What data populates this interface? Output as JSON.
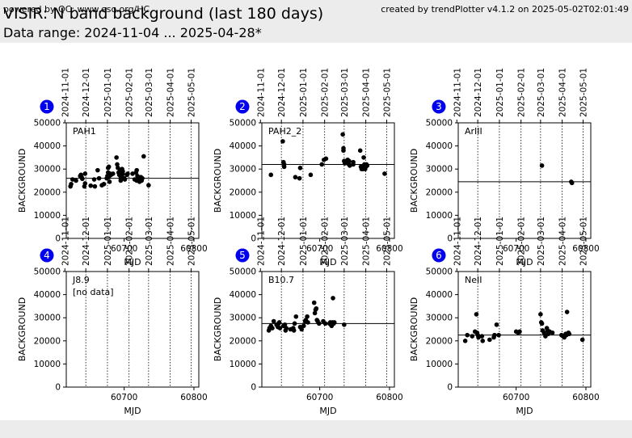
{
  "header": {
    "title": "VISIR: N band background (last 180 days)",
    "subtitle": "Data range: 2024-11-04 ... 2025-04-28*"
  },
  "footer": {
    "left": "powered by QC: www.eso.org/HC",
    "right": "created by trendPlotter v4.1.2 on 2025-05-02T02:01:49"
  },
  "colors": {
    "header_bg": "#ececec",
    "badge": "#0000ee",
    "points": "#000000",
    "mean_line": "#000000"
  },
  "chart_data": [
    {
      "type": "scatter",
      "panel": "1",
      "label": "PAH1",
      "xlabel": "MJD",
      "ylabel": "BACKGROUND",
      "xlim": [
        60617,
        60807
      ],
      "ylim": [
        0,
        50000
      ],
      "xticks": [
        60700,
        60800
      ],
      "yticks": [
        0,
        10000,
        20000,
        30000,
        40000,
        50000
      ],
      "date_ticks": [
        {
          "label": "2024-11-01",
          "mjd": 60615
        },
        {
          "label": "2024-12-01",
          "mjd": 60645
        },
        {
          "label": "2025-01-01",
          "mjd": 60676
        },
        {
          "label": "2025-02-01",
          "mjd": 60707
        },
        {
          "label": "2025-03-01",
          "mjd": 60735
        },
        {
          "label": "2025-04-01",
          "mjd": 60766
        },
        {
          "label": "2025-05-01",
          "mjd": 60796
        }
      ],
      "mean": 26000,
      "no_data": "",
      "points": [
        [
          60623,
          22500
        ],
        [
          60624,
          23500
        ],
        [
          60626,
          25500
        ],
        [
          60631,
          25000
        ],
        [
          60637,
          27000
        ],
        [
          60638,
          27500
        ],
        [
          60639,
          26500
        ],
        [
          60640,
          25800
        ],
        [
          60643,
          22500
        ],
        [
          60644,
          23800
        ],
        [
          60644,
          28000
        ],
        [
          60652,
          22800
        ],
        [
          60657,
          25500
        ],
        [
          60658,
          22500
        ],
        [
          60662,
          29500
        ],
        [
          60664,
          26000
        ],
        [
          60668,
          23000
        ],
        [
          60671,
          23500
        ],
        [
          60675,
          26000
        ],
        [
          60676,
          27000
        ],
        [
          60677,
          28500
        ],
        [
          60677,
          30500
        ],
        [
          60678,
          31000
        ],
        [
          60678,
          26500
        ],
        [
          60679,
          24500
        ],
        [
          60680,
          28000
        ],
        [
          60681,
          27500
        ],
        [
          60684,
          28000
        ],
        [
          60689,
          35000
        ],
        [
          60690,
          32000
        ],
        [
          60691,
          30500
        ],
        [
          60692,
          28500
        ],
        [
          60693,
          27500
        ],
        [
          60694,
          29000
        ],
        [
          60695,
          26000
        ],
        [
          60695,
          25000
        ],
        [
          60697,
          30000
        ],
        [
          60697,
          27500
        ],
        [
          60698,
          29000
        ],
        [
          60698,
          28000
        ],
        [
          60700,
          26000
        ],
        [
          60701,
          25500
        ],
        [
          60704,
          27500
        ],
        [
          60705,
          28000
        ],
        [
          60712,
          28000
        ],
        [
          60715,
          25500
        ],
        [
          60717,
          28500
        ],
        [
          60718,
          29500
        ],
        [
          60718,
          25000
        ],
        [
          60719,
          27000
        ],
        [
          60720,
          26000
        ],
        [
          60722,
          24500
        ],
        [
          60723,
          25500
        ],
        [
          60724,
          26500
        ],
        [
          60725,
          25000
        ],
        [
          60726,
          26000
        ],
        [
          60728,
          35500
        ],
        [
          60735,
          23000
        ]
      ]
    },
    {
      "type": "scatter",
      "panel": "2",
      "label": "PAH2_2",
      "xlabel": "MJD",
      "ylabel": "BACKGROUND",
      "xlim": [
        60617,
        60807
      ],
      "ylim": [
        0,
        50000
      ],
      "xticks": [
        60700,
        60800
      ],
      "yticks": [
        0,
        10000,
        20000,
        30000,
        40000,
        50000
      ],
      "date_ticks": [
        {
          "label": "2024-11-01",
          "mjd": 60615
        },
        {
          "label": "2024-12-01",
          "mjd": 60645
        },
        {
          "label": "2025-01-01",
          "mjd": 60676
        },
        {
          "label": "2025-02-01",
          "mjd": 60707
        },
        {
          "label": "2025-03-01",
          "mjd": 60735
        },
        {
          "label": "2025-04-01",
          "mjd": 60766
        },
        {
          "label": "2025-05-01",
          "mjd": 60796
        }
      ],
      "mean": 32000,
      "no_data": "",
      "points": [
        [
          60630,
          27500
        ],
        [
          60647,
          42000
        ],
        [
          60648,
          33000
        ],
        [
          60649,
          32000
        ],
        [
          60649,
          31000
        ],
        [
          60665,
          26500
        ],
        [
          60671,
          26000
        ],
        [
          60672,
          30500
        ],
        [
          60687,
          27500
        ],
        [
          60703,
          32000
        ],
        [
          60706,
          34000
        ],
        [
          60709,
          34500
        ],
        [
          60733,
          45000
        ],
        [
          60734,
          39000
        ],
        [
          60734,
          38000
        ],
        [
          60735,
          33500
        ],
        [
          60736,
          32500
        ],
        [
          60737,
          33000
        ],
        [
          60740,
          32500
        ],
        [
          60740,
          34000
        ],
        [
          60742,
          33500
        ],
        [
          60742,
          32000
        ],
        [
          60743,
          31500
        ],
        [
          60748,
          32000
        ],
        [
          60748,
          33000
        ],
        [
          60758,
          38000
        ],
        [
          60759,
          31000
        ],
        [
          60760,
          30000
        ],
        [
          60761,
          30500
        ],
        [
          60762,
          30000
        ],
        [
          60763,
          35000
        ],
        [
          60764,
          32000
        ],
        [
          60765,
          30000
        ],
        [
          60766,
          31000
        ],
        [
          60767,
          32000
        ],
        [
          60768,
          31500
        ],
        [
          60793,
          28000
        ]
      ]
    },
    {
      "type": "scatter",
      "panel": "3",
      "label": "ArIII",
      "xlabel": "MJD",
      "ylabel": "BACKGROUND",
      "xlim": [
        60617,
        60807
      ],
      "ylim": [
        0,
        50000
      ],
      "xticks": [
        60700,
        60800
      ],
      "yticks": [
        0,
        10000,
        20000,
        30000,
        40000,
        50000
      ],
      "date_ticks": [
        {
          "label": "2024-11-01",
          "mjd": 60615
        },
        {
          "label": "2024-12-01",
          "mjd": 60645
        },
        {
          "label": "2025-01-01",
          "mjd": 60676
        },
        {
          "label": "2025-02-01",
          "mjd": 60707
        },
        {
          "label": "2025-03-01",
          "mjd": 60735
        },
        {
          "label": "2025-04-01",
          "mjd": 60766
        },
        {
          "label": "2025-05-01",
          "mjd": 60796
        }
      ],
      "mean": 24500,
      "no_data": "",
      "points": [
        [
          60737,
          31500
        ],
        [
          60779,
          24500
        ],
        [
          60780,
          24000
        ]
      ]
    },
    {
      "type": "scatter",
      "panel": "4",
      "label": "J8.9",
      "xlabel": "MJD",
      "ylabel": "BACKGROUND",
      "xlim": [
        60617,
        60807
      ],
      "ylim": [
        0,
        50000
      ],
      "xticks": [
        60700,
        60800
      ],
      "yticks": [
        0,
        10000,
        20000,
        30000,
        40000,
        50000
      ],
      "date_ticks": [
        {
          "label": "2024-11-01",
          "mjd": 60615
        },
        {
          "label": "2024-12-01",
          "mjd": 60645
        },
        {
          "label": "2025-01-01",
          "mjd": 60676
        },
        {
          "label": "2025-02-01",
          "mjd": 60707
        },
        {
          "label": "2025-03-01",
          "mjd": 60735
        },
        {
          "label": "2025-04-01",
          "mjd": 60766
        },
        {
          "label": "2025-05-01",
          "mjd": 60796
        }
      ],
      "mean": null,
      "no_data": "[no data]",
      "points": []
    },
    {
      "type": "scatter",
      "panel": "5",
      "label": "B10.7",
      "xlabel": "MJD",
      "ylabel": "BACKGROUND",
      "xlim": [
        60617,
        60807
      ],
      "ylim": [
        0,
        50000
      ],
      "xticks": [
        60700,
        60800
      ],
      "yticks": [
        0,
        10000,
        20000,
        30000,
        40000,
        50000
      ],
      "date_ticks": [
        {
          "label": "2024-11-01",
          "mjd": 60615
        },
        {
          "label": "2024-12-01",
          "mjd": 60645
        },
        {
          "label": "2025-01-01",
          "mjd": 60676
        },
        {
          "label": "2025-02-01",
          "mjd": 60707
        },
        {
          "label": "2025-03-01",
          "mjd": 60735
        },
        {
          "label": "2025-04-01",
          "mjd": 60766
        },
        {
          "label": "2025-05-01",
          "mjd": 60796
        }
      ],
      "mean": 27500,
      "no_data": "",
      "points": [
        [
          60627,
          24500
        ],
        [
          60628,
          25500
        ],
        [
          60630,
          26500
        ],
        [
          60632,
          25500
        ],
        [
          60634,
          28500
        ],
        [
          60638,
          27000
        ],
        [
          60640,
          26000
        ],
        [
          60641,
          27500
        ],
        [
          60642,
          28000
        ],
        [
          60643,
          25500
        ],
        [
          60648,
          26500
        ],
        [
          60650,
          27000
        ],
        [
          60651,
          24500
        ],
        [
          60652,
          25500
        ],
        [
          60658,
          25000
        ],
        [
          60662,
          25500
        ],
        [
          60663,
          24500
        ],
        [
          60664,
          27500
        ],
        [
          60666,
          30500
        ],
        [
          60672,
          26000
        ],
        [
          60674,
          25000
        ],
        [
          60677,
          26500
        ],
        [
          60679,
          28500
        ],
        [
          60680,
          29000
        ],
        [
          60682,
          30500
        ],
        [
          60683,
          28000
        ],
        [
          60692,
          36500
        ],
        [
          60693,
          32000
        ],
        [
          60694,
          33500
        ],
        [
          60695,
          34000
        ],
        [
          60696,
          29000
        ],
        [
          60697,
          28500
        ],
        [
          60699,
          27500
        ],
        [
          60705,
          28500
        ],
        [
          60708,
          27500
        ],
        [
          60714,
          27500
        ],
        [
          60715,
          28000
        ],
        [
          60716,
          27000
        ],
        [
          60717,
          26500
        ],
        [
          60718,
          28000
        ],
        [
          60719,
          38500
        ],
        [
          60720,
          27500
        ],
        [
          60721,
          28000
        ],
        [
          60735,
          27000
        ]
      ]
    },
    {
      "type": "scatter",
      "panel": "6",
      "label": "NeII",
      "xlabel": "MJD",
      "ylabel": "BACKGROUND",
      "xlim": [
        60617,
        60807
      ],
      "ylim": [
        0,
        50000
      ],
      "xticks": [
        60700,
        60800
      ],
      "yticks": [
        0,
        10000,
        20000,
        30000,
        40000,
        50000
      ],
      "date_ticks": [
        {
          "label": "2024-11-01",
          "mjd": 60615
        },
        {
          "label": "2024-12-01",
          "mjd": 60645
        },
        {
          "label": "2025-01-01",
          "mjd": 60676
        },
        {
          "label": "2025-02-01",
          "mjd": 60707
        },
        {
          "label": "2025-03-01",
          "mjd": 60735
        },
        {
          "label": "2025-04-01",
          "mjd": 60766
        },
        {
          "label": "2025-05-01",
          "mjd": 60796
        }
      ],
      "mean": 22500,
      "no_data": "",
      "points": [
        [
          60627,
          20000
        ],
        [
          60630,
          22500
        ],
        [
          60637,
          22000
        ],
        [
          60641,
          24000
        ],
        [
          60643,
          31500
        ],
        [
          60644,
          23500
        ],
        [
          60645,
          22500
        ],
        [
          60646,
          21500
        ],
        [
          60651,
          22000
        ],
        [
          60652,
          20000
        ],
        [
          60662,
          20500
        ],
        [
          60668,
          21500
        ],
        [
          60669,
          22500
        ],
        [
          60672,
          27000
        ],
        [
          60675,
          22500
        ],
        [
          60700,
          24000
        ],
        [
          60703,
          23500
        ],
        [
          60705,
          24000
        ],
        [
          60735,
          31500
        ],
        [
          60736,
          28000
        ],
        [
          60737,
          27500
        ],
        [
          60738,
          24500
        ],
        [
          60740,
          23500
        ],
        [
          60742,
          22000
        ],
        [
          60744,
          25500
        ],
        [
          60745,
          24500
        ],
        [
          60746,
          23000
        ],
        [
          60748,
          24000
        ],
        [
          60752,
          23500
        ],
        [
          60765,
          22500
        ],
        [
          60767,
          22000
        ],
        [
          60769,
          21500
        ],
        [
          60771,
          23000
        ],
        [
          60772,
          22500
        ],
        [
          60773,
          32500
        ],
        [
          60775,
          23500
        ],
        [
          60776,
          23000
        ],
        [
          60795,
          20500
        ]
      ]
    }
  ]
}
